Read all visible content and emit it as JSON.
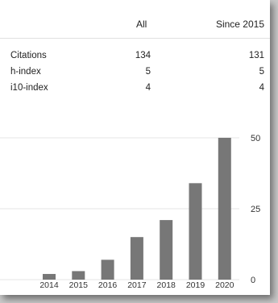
{
  "table": {
    "headers": [
      "All",
      "Since 2015"
    ],
    "rows": [
      {
        "label": "Citations",
        "all": "134",
        "since": "131"
      },
      {
        "label": "h-index",
        "all": "5",
        "since": "5"
      },
      {
        "label": "i10-index",
        "all": "4",
        "since": "4"
      }
    ]
  },
  "chart_data": {
    "type": "bar",
    "categories": [
      "2014",
      "2015",
      "2016",
      "2017",
      "2018",
      "2019",
      "2020"
    ],
    "values": [
      2,
      3,
      7,
      15,
      21,
      34,
      50
    ],
    "ylim": [
      0,
      50
    ],
    "yticks": [
      "0",
      "25",
      "50"
    ],
    "grid": true,
    "bar_color": "#777777",
    "grid_color": "#e6e6e6"
  }
}
